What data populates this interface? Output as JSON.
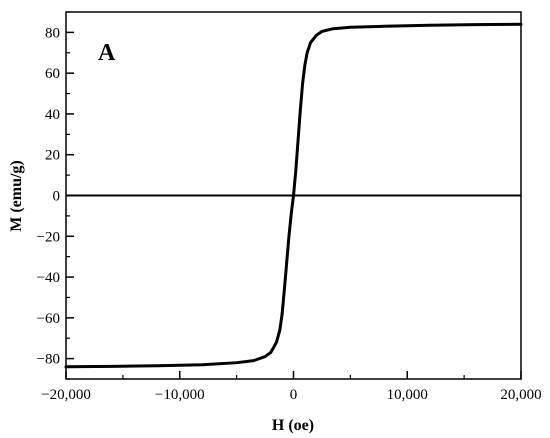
{
  "chart_data": {
    "type": "line",
    "panel_label": "A",
    "xlabel": "H (oe)",
    "ylabel": "M (emu/g)",
    "xlim": [
      -20000,
      20000
    ],
    "ylim": [
      -90,
      90
    ],
    "x_ticks": [
      -20000,
      -10000,
      0,
      10000,
      20000
    ],
    "x_tick_labels": [
      "−20,000",
      "−10,000",
      "0",
      "10,000",
      "20,000"
    ],
    "y_ticks": [
      -80,
      -60,
      -40,
      -20,
      0,
      20,
      40,
      60,
      80
    ],
    "y_tick_labels": [
      "−80",
      "−60",
      "−40",
      "−20",
      "0",
      "20",
      "40",
      "60",
      "80"
    ],
    "grid": false,
    "zero_line": true,
    "series": [
      {
        "color": "#000000",
        "x": [
          -20000,
          -16000,
          -12000,
          -8000,
          -5000,
          -3500,
          -2500,
          -2000,
          -1500,
          -1200,
          -1000,
          -800,
          -600,
          -400,
          -200,
          0,
          200,
          400,
          600,
          800,
          1000,
          1200,
          1500,
          2000,
          2500,
          3500,
          5000,
          8000,
          12000,
          16000,
          20000
        ],
        "y": [
          -84,
          -83.8,
          -83.5,
          -83,
          -82,
          -81,
          -79,
          -77,
          -72,
          -66,
          -58,
          -46,
          -33,
          -20,
          -9,
          0,
          12,
          27,
          42,
          55,
          64,
          70,
          75,
          78.5,
          80.5,
          81.8,
          82.5,
          83,
          83.5,
          83.8,
          84
        ]
      }
    ]
  }
}
